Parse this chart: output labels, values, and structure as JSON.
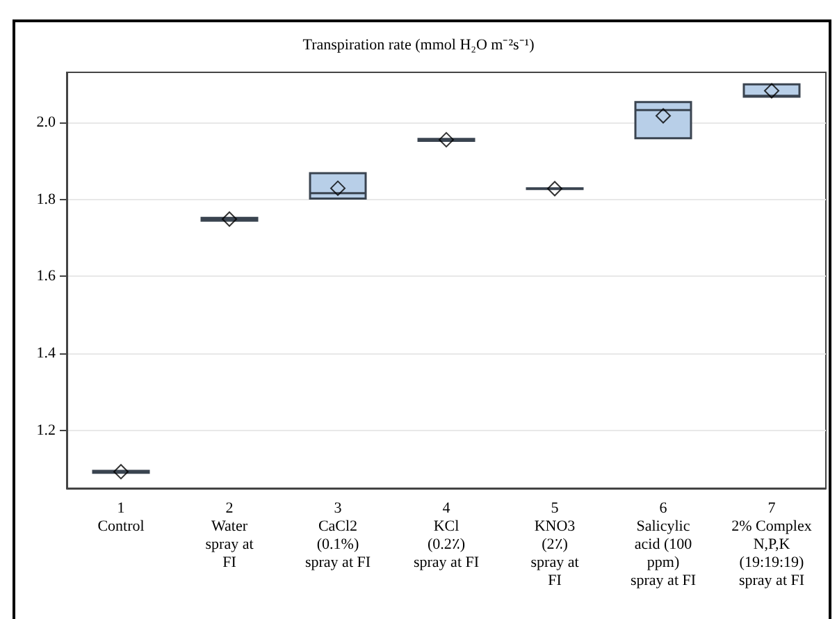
{
  "chart_data": {
    "type": "box",
    "title": "Transpiration rate (mmol H₂O m⁻²s⁻¹)",
    "categories": [
      "1\nControl",
      "2\nWater\nspray at\nFI",
      "3\nCaCl2\n(0.1%)\nspray at FI",
      "4\nKCl\n(0.2٪)\nspray at FI",
      "5\nKNO3\n(2٪)\nspray at\nFI",
      "6\nSalicylic\nacid (100\nppm)\nspray at FI",
      "7\n2% Complex\nN,P,K\n(19:19:19)\nspray at FI"
    ],
    "boxes": [
      {
        "low": 1.09,
        "q1": 1.09,
        "median": 1.093,
        "q3": 1.095,
        "high": 1.095,
        "mean": 1.093
      },
      {
        "low": 1.745,
        "q1": 1.745,
        "median": 1.749,
        "q3": 1.752,
        "high": 1.752,
        "mean": 1.749
      },
      {
        "low": 1.802,
        "q1": 1.802,
        "median": 1.816,
        "q3": 1.868,
        "high": 1.868,
        "mean": 1.829
      },
      {
        "low": 1.952,
        "q1": 1.952,
        "median": 1.955,
        "q3": 1.957,
        "high": 1.957,
        "mean": 1.955
      },
      {
        "low": 1.827,
        "q1": 1.827,
        "median": 1.828,
        "q3": 1.829,
        "high": 1.829,
        "mean": 1.828
      },
      {
        "low": 1.959,
        "q1": 1.959,
        "median": 2.032,
        "q3": 2.053,
        "high": 2.053,
        "mean": 2.017
      },
      {
        "low": 2.067,
        "q1": 2.067,
        "median": 2.069,
        "q3": 2.099,
        "high": 2.099,
        "mean": 2.082
      }
    ],
    "color": "#b8cfe8",
    "ylim": [
      1.05,
      2.13
    ],
    "yticks": [
      1.2,
      1.4,
      1.6,
      1.8,
      {
        "value": 2,
        "label": "2.0"
      }
    ],
    "grid": "y"
  }
}
